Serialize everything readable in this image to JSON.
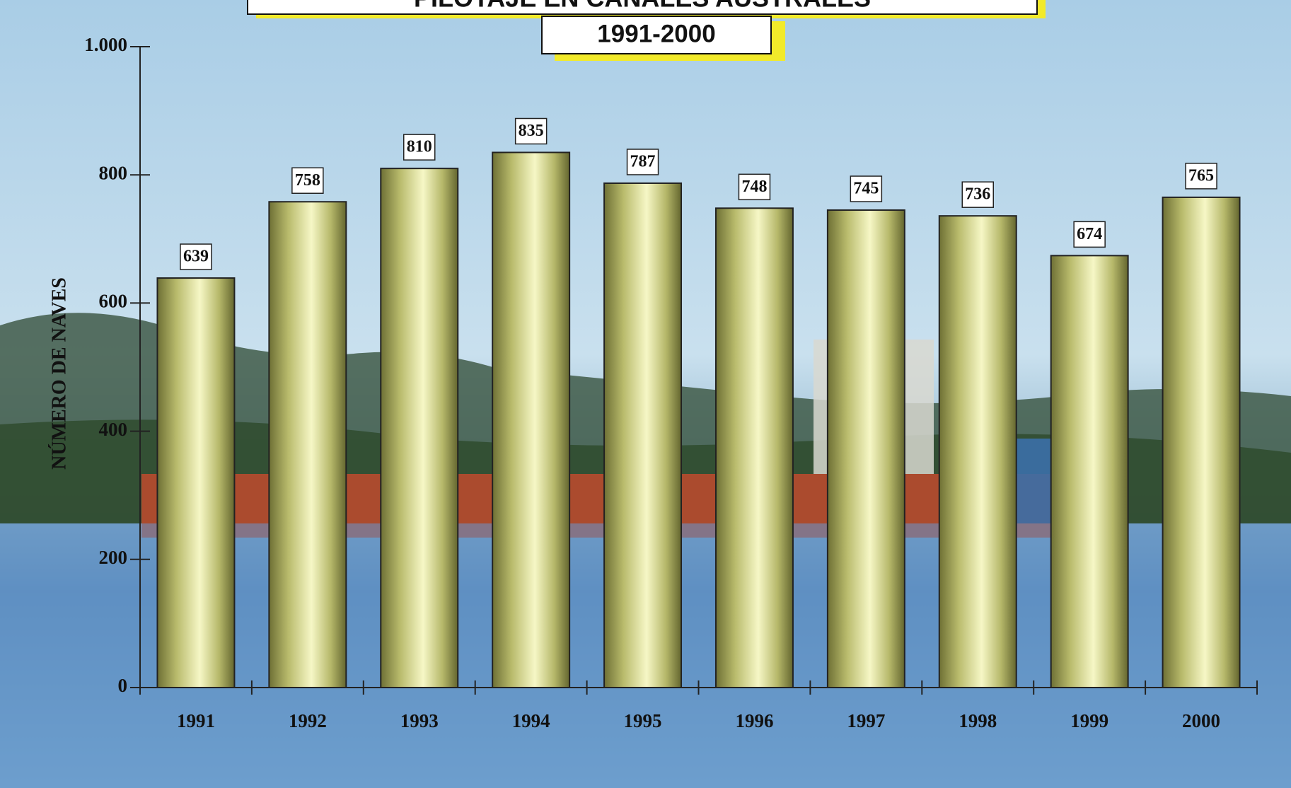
{
  "chart_data": {
    "type": "bar",
    "title": "PILOTAJE EN CANALES AUSTRALES",
    "subtitle": "1991-2000",
    "y_label": "NÚMERO DE NAVES",
    "categories": [
      "1991",
      "1992",
      "1993",
      "1994",
      "1995",
      "1996",
      "1997",
      "1998",
      "1999",
      "2000"
    ],
    "values": [
      639,
      758,
      810,
      835,
      787,
      748,
      745,
      736,
      674,
      765
    ],
    "ylim": [
      0,
      1000
    ],
    "yticks": [
      0,
      200,
      400,
      600,
      800,
      {
        "value": 1000,
        "label": "1.000"
      }
    ],
    "grid": false
  }
}
